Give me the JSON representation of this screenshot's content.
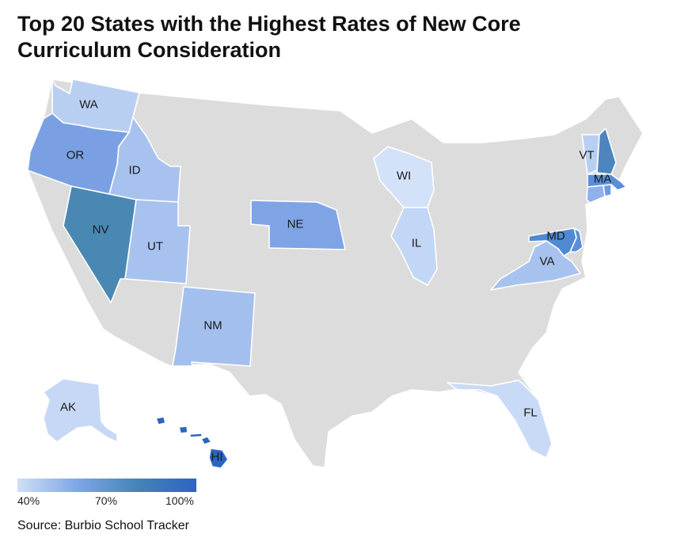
{
  "title_line1": "Top 20 States with the Highest Rates of New Core",
  "title_line2": "Curriculum Consideration",
  "source": "Source: Burbio School Tracker",
  "legend": {
    "min_label": "40%",
    "mid_label": "70%",
    "max_label": "100%",
    "colors": [
      "#cfdff5",
      "#7fa6e6",
      "#4584b7",
      "#2d64c4"
    ]
  },
  "colors": {
    "no_data": "#dcdcdc",
    "wa": "#b9cff2",
    "or": "#7aa0e3",
    "nv": "#4a88b4",
    "id": "#a8c2ef",
    "ut": "#a8c2ef",
    "nm": "#a3bfee",
    "ne": "#7ea4e6",
    "wi": "#d3e2f8",
    "il": "#c2d6f5",
    "vt": "#b9cff2",
    "nh": "#4d86bf",
    "ma": "#5a8fd9",
    "ct": "#8fb0eb",
    "ri": "#6c9be3",
    "md": "#4f8ad2",
    "de": "#5a8fd9",
    "va": "#a8c2ef",
    "fl": "#c8daf6",
    "ak": "#c6d8f5",
    "hi": "#2d64c4"
  },
  "state_labels": {
    "wa": "WA",
    "or": "OR",
    "nv": "NV",
    "id": "ID",
    "ut": "UT",
    "nm": "NM",
    "ne": "NE",
    "wi": "WI",
    "il": "IL",
    "vt": "VT",
    "ma": "MA",
    "md": "MD",
    "va": "VA",
    "fl": "FL",
    "ak": "AK",
    "hi": "HI"
  }
}
